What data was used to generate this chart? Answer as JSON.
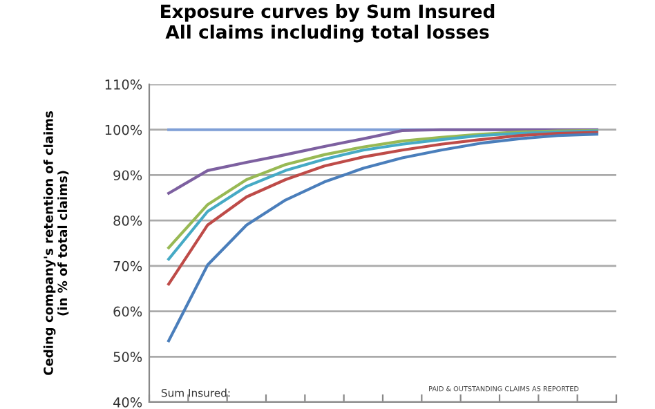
{
  "chart_data": {
    "type": "line",
    "title": "Exposure curves by Sum Insured\nAll claims including total losses",
    "ylabel": "Ceding company's retention of claims\n(in % of total claims)",
    "categories": [
      null,
      null,
      null,
      null,
      null,
      null,
      null,
      null,
      null,
      null,
      null,
      null
    ],
    "series": [
      {
        "color": "#7f9fd6",
        "values": [
          100,
          100,
          100,
          100,
          100,
          100,
          100,
          100,
          100,
          100,
          100,
          100
        ]
      },
      {
        "color": "#7d60a0",
        "values": [
          86,
          91,
          92.8,
          94.5,
          96.3,
          98,
          99.8,
          100,
          100,
          100,
          100,
          100
        ]
      },
      {
        "color": "#98b954",
        "values": [
          74,
          83.5,
          89,
          92.3,
          94.5,
          96.2,
          97.5,
          98.3,
          99,
          99.5,
          99.7,
          99.8
        ]
      },
      {
        "color": "#46aac5",
        "values": [
          71.5,
          82,
          87.5,
          91,
          93.5,
          95.5,
          96.8,
          97.8,
          98.7,
          99.2,
          99.5,
          99.7
        ]
      },
      {
        "color": "#be4b48",
        "values": [
          66,
          79,
          85.2,
          89,
          92,
          94,
          95.5,
          96.8,
          97.8,
          98.7,
          99.2,
          99.4
        ]
      },
      {
        "color": "#4a7ebb",
        "values": [
          53.5,
          70.2,
          79,
          84.5,
          88.5,
          91.5,
          93.8,
          95.5,
          97,
          98,
          98.7,
          99
        ]
      }
    ],
    "ylim": [
      40,
      110
    ],
    "yticks": [
      {
        "value": 40,
        "label": "40%"
      },
      {
        "value": 50,
        "label": "50%"
      },
      {
        "value": 60,
        "label": "60%"
      },
      {
        "value": 70,
        "label": "70%"
      },
      {
        "value": 80,
        "label": "80%"
      },
      {
        "value": 90,
        "label": "90%"
      },
      {
        "value": 100,
        "label": "100%"
      },
      {
        "value": 110,
        "label": "110%"
      }
    ],
    "grid": "y",
    "marker": "none",
    "line_style": "solid",
    "annotations": [
      "PAID & OUTSTANDING CLAIMS AS REPORTED",
      "Sum Insured:"
    ]
  }
}
